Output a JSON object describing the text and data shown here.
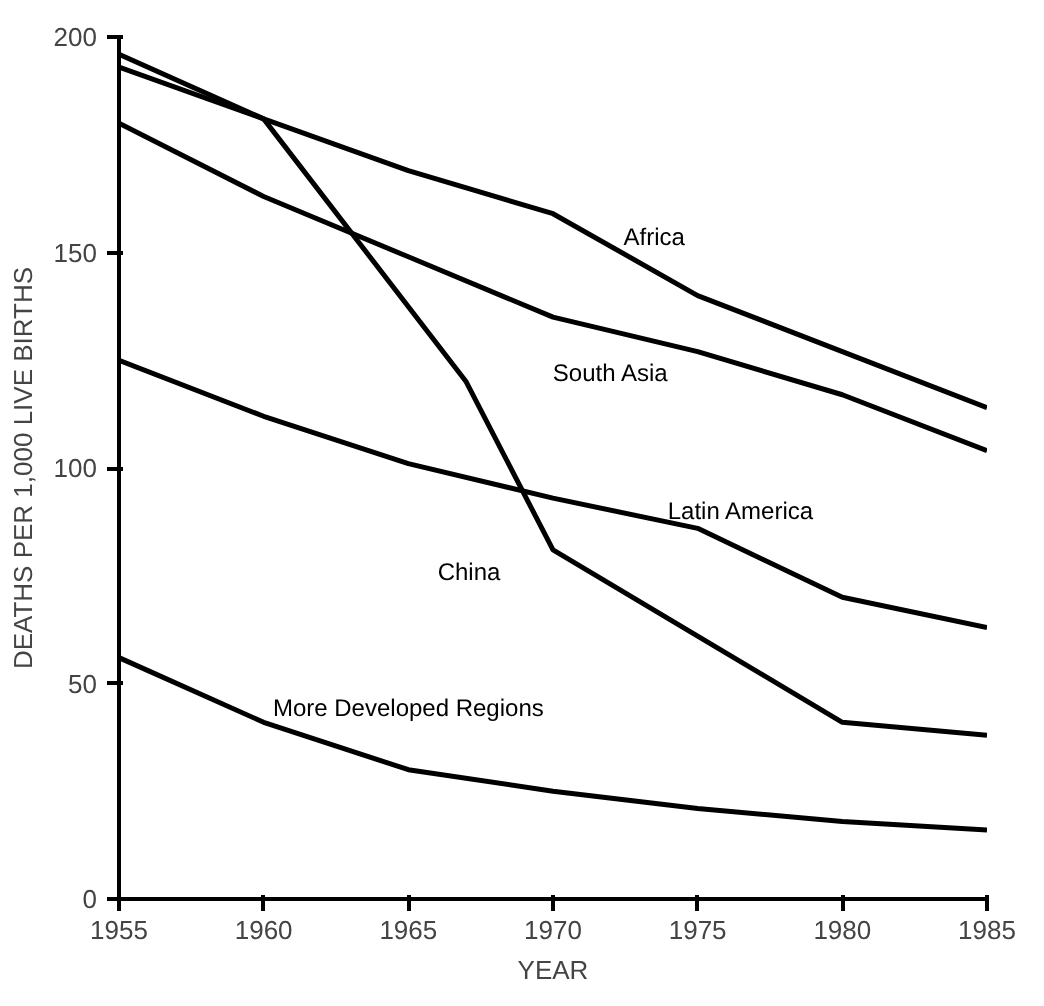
{
  "chart_data": {
    "type": "line",
    "xlabel": "YEAR",
    "ylabel": "DEATHS PER 1,000 LIVE BIRTHS",
    "x": [
      1955,
      1960,
      1965,
      1970,
      1975,
      1980,
      1985
    ],
    "series": [
      {
        "name": "Africa",
        "color": "#000000",
        "values": [
          196,
          181,
          169,
          159,
          140,
          127,
          114
        ]
      },
      {
        "name": "South Asia",
        "color": "#000000",
        "values": [
          180,
          163,
          149,
          135,
          127,
          117,
          104
        ]
      },
      {
        "name": "China",
        "color": "#000000",
        "x": [
          1955,
          1960,
          1967,
          1970,
          1975,
          1980,
          1985
        ],
        "values": [
          193,
          181,
          120,
          81,
          61,
          41,
          38
        ]
      },
      {
        "name": "Latin America",
        "color": "#000000",
        "values": [
          125,
          112,
          101,
          93,
          86,
          70,
          63
        ]
      },
      {
        "name": "More Developed Regions",
        "color": "#000000",
        "values": [
          56,
          41,
          30,
          25,
          21,
          18,
          16
        ]
      }
    ],
    "xlim": [
      1955,
      1985
    ],
    "xticks": [
      1955,
      1960,
      1965,
      1970,
      1975,
      1980,
      1985
    ],
    "ylim": [
      0,
      200
    ],
    "yticks": [
      0,
      50,
      100,
      150,
      200
    ],
    "grid": false,
    "marker": "none",
    "line_style": "solid"
  }
}
